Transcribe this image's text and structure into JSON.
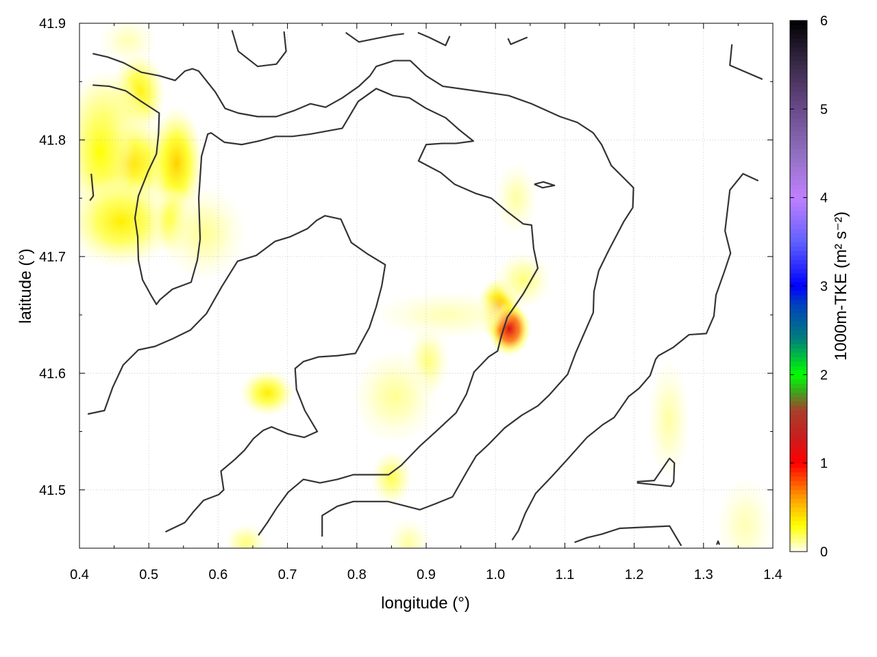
{
  "chart_data": {
    "type": "heatmap",
    "xlabel": "longitude (°)",
    "ylabel": "latitude (°)",
    "colorbar_label": "1000m-TKE (m² s⁻²)",
    "xlim": [
      0.4,
      1.4
    ],
    "ylim": [
      41.45,
      41.9
    ],
    "xticks": [
      "0.4",
      "0.5",
      "0.6",
      "0.7",
      "0.8",
      "0.9",
      "1.0",
      "1.1",
      "1.2",
      "1.3",
      "1.4"
    ],
    "yticks": [
      "41.5",
      "41.6",
      "41.7",
      "41.8",
      "41.9"
    ],
    "grid": true,
    "colorbar": {
      "range": [
        0,
        6
      ],
      "ticks": [
        "0",
        "1",
        "2",
        "3",
        "4",
        "5",
        "6"
      ],
      "stops": [
        [
          0,
          "#fffff4"
        ],
        [
          0.3,
          "#ffff00"
        ],
        [
          0.6,
          "#ffa000"
        ],
        [
          1.0,
          "#ff0000"
        ],
        [
          1.3,
          "#c81e1e"
        ],
        [
          1.6,
          "#a8402a"
        ],
        [
          1.8,
          "#40a020"
        ],
        [
          2.0,
          "#00ff00"
        ],
        [
          2.4,
          "#00807a"
        ],
        [
          2.8,
          "#0040c0"
        ],
        [
          3.0,
          "#0000ff"
        ],
        [
          3.5,
          "#6060ff"
        ],
        [
          4.0,
          "#c080ff"
        ],
        [
          4.5,
          "#9070c0"
        ],
        [
          5.0,
          "#6a4a8a"
        ],
        [
          5.5,
          "#3a2a4a"
        ],
        [
          6.0,
          "#000000"
        ]
      ]
    },
    "tke_field": [
      {
        "lon": 0.485,
        "lat": 41.84,
        "value": 0.35,
        "spread": [
          0.02,
          0.018
        ]
      },
      {
        "lon": 0.44,
        "lat": 41.82,
        "value": 0.2,
        "spread": [
          0.03,
          0.02
        ]
      },
      {
        "lon": 0.47,
        "lat": 41.78,
        "value": 0.4,
        "spread": [
          0.04,
          0.02
        ]
      },
      {
        "lon": 0.43,
        "lat": 41.79,
        "value": 0.3,
        "spread": [
          0.025,
          0.03
        ]
      },
      {
        "lon": 0.54,
        "lat": 41.78,
        "value": 0.45,
        "spread": [
          0.02,
          0.025
        ]
      },
      {
        "lon": 0.46,
        "lat": 41.73,
        "value": 0.35,
        "spread": [
          0.04,
          0.02
        ]
      },
      {
        "lon": 0.535,
        "lat": 41.73,
        "value": 0.3,
        "spread": [
          0.015,
          0.015
        ]
      },
      {
        "lon": 0.58,
        "lat": 41.72,
        "value": 0.12,
        "spread": [
          0.03,
          0.02
        ]
      },
      {
        "lon": 0.47,
        "lat": 41.885,
        "value": 0.08,
        "spread": [
          0.02,
          0.01
        ]
      },
      {
        "lon": 1.005,
        "lat": 41.655,
        "value": 0.6,
        "spread": [
          0.016,
          0.014
        ]
      },
      {
        "lon": 1.02,
        "lat": 41.638,
        "value": 1.2,
        "spread": [
          0.016,
          0.012
        ]
      },
      {
        "lon": 0.671,
        "lat": 41.583,
        "value": 0.35,
        "spread": [
          0.02,
          0.01
        ]
      },
      {
        "lon": 0.903,
        "lat": 41.61,
        "value": 0.15,
        "spread": [
          0.015,
          0.015
        ]
      },
      {
        "lon": 0.855,
        "lat": 41.58,
        "value": 0.12,
        "spread": [
          0.03,
          0.02
        ]
      },
      {
        "lon": 0.85,
        "lat": 41.51,
        "value": 0.2,
        "spread": [
          0.015,
          0.012
        ]
      },
      {
        "lon": 0.93,
        "lat": 41.65,
        "value": 0.08,
        "spread": [
          0.05,
          0.01
        ]
      },
      {
        "lon": 1.04,
        "lat": 41.68,
        "value": 0.15,
        "spread": [
          0.02,
          0.012
        ]
      },
      {
        "lon": 1.03,
        "lat": 41.75,
        "value": 0.1,
        "spread": [
          0.015,
          0.015
        ]
      },
      {
        "lon": 1.25,
        "lat": 41.56,
        "value": 0.1,
        "spread": [
          0.015,
          0.025
        ]
      },
      {
        "lon": 0.64,
        "lat": 41.455,
        "value": 0.15,
        "spread": [
          0.015,
          0.008
        ]
      },
      {
        "lon": 0.875,
        "lat": 41.455,
        "value": 0.1,
        "spread": [
          0.015,
          0.01
        ]
      },
      {
        "lon": 1.36,
        "lat": 41.47,
        "value": 0.08,
        "spread": [
          0.02,
          0.02
        ]
      }
    ],
    "contours": [
      [
        [
          0.419,
          41.874
        ],
        [
          0.441,
          41.871
        ],
        [
          0.464,
          41.866
        ],
        [
          0.489,
          41.858
        ],
        [
          0.515,
          41.855
        ],
        [
          0.538,
          41.851
        ],
        [
          0.552,
          41.859
        ],
        [
          0.563,
          41.861
        ],
        [
          0.572,
          41.859
        ],
        [
          0.596,
          41.841
        ],
        [
          0.61,
          41.827
        ],
        [
          0.629,
          41.823
        ],
        [
          0.657,
          41.82
        ],
        [
          0.684,
          41.82
        ],
        [
          0.709,
          41.825
        ],
        [
          0.733,
          41.831
        ],
        [
          0.755,
          41.828
        ],
        [
          0.779,
          41.836
        ],
        [
          0.803,
          41.846
        ],
        [
          0.819,
          41.855
        ],
        [
          0.828,
          41.863
        ],
        [
          0.854,
          41.868
        ],
        [
          0.877,
          41.868
        ],
        [
          0.9,
          41.855
        ],
        [
          0.924,
          41.846
        ],
        [
          0.972,
          41.842
        ],
        [
          1.019,
          41.838
        ],
        [
          1.052,
          41.831
        ],
        [
          1.093,
          41.82
        ],
        [
          1.118,
          41.815
        ],
        [
          1.141,
          41.806
        ],
        [
          1.153,
          41.796
        ],
        [
          1.167,
          41.778
        ],
        [
          1.189,
          41.765
        ],
        [
          1.199,
          41.759
        ],
        [
          1.198,
          41.742
        ],
        [
          1.185,
          41.73
        ],
        [
          1.163,
          41.705
        ],
        [
          1.149,
          41.688
        ],
        [
          1.142,
          41.67
        ],
        [
          1.141,
          41.652
        ],
        [
          1.116,
          41.618
        ],
        [
          1.104,
          41.599
        ],
        [
          1.077,
          41.581
        ],
        [
          1.061,
          41.572
        ],
        [
          1.038,
          41.564
        ],
        [
          1.013,
          41.553
        ],
        [
          0.99,
          41.539
        ],
        [
          0.972,
          41.529
        ],
        [
          0.959,
          41.516
        ],
        [
          0.938,
          41.494
        ],
        [
          0.913,
          41.488
        ],
        [
          0.891,
          41.483
        ],
        [
          0.845,
          41.49
        ],
        [
          0.795,
          41.49
        ],
        [
          0.772,
          41.486
        ],
        [
          0.75,
          41.478
        ],
        [
          0.75,
          41.46
        ]
      ],
      [
        [
          0.419,
          41.847
        ],
        [
          0.443,
          41.846
        ],
        [
          0.467,
          41.842
        ],
        [
          0.489,
          41.833
        ],
        [
          0.515,
          41.823
        ],
        [
          0.514,
          41.805
        ],
        [
          0.511,
          41.788
        ],
        [
          0.499,
          41.773
        ],
        [
          0.485,
          41.752
        ],
        [
          0.48,
          41.733
        ],
        [
          0.484,
          41.717
        ],
        [
          0.485,
          41.697
        ],
        [
          0.491,
          41.68
        ],
        [
          0.503,
          41.667
        ],
        [
          0.511,
          41.659
        ],
        [
          0.516,
          41.663
        ],
        [
          0.534,
          41.672
        ],
        [
          0.561,
          41.678
        ],
        [
          0.57,
          41.697
        ],
        [
          0.574,
          41.715
        ],
        [
          0.572,
          41.75
        ],
        [
          0.576,
          41.786
        ],
        [
          0.585,
          41.805
        ],
        [
          0.59,
          41.806
        ],
        [
          0.609,
          41.798
        ],
        [
          0.634,
          41.796
        ],
        [
          0.658,
          41.799
        ],
        [
          0.683,
          41.803
        ],
        [
          0.707,
          41.803
        ],
        [
          0.733,
          41.805
        ],
        [
          0.779,
          41.81
        ],
        [
          0.802,
          41.833
        ],
        [
          0.828,
          41.844
        ],
        [
          0.852,
          41.838
        ],
        [
          0.876,
          41.836
        ],
        [
          0.9,
          41.827
        ],
        [
          0.928,
          41.819
        ],
        [
          0.947,
          41.809
        ],
        [
          0.968,
          41.799
        ],
        [
          0.943,
          41.797
        ],
        [
          0.923,
          41.797
        ],
        [
          0.9,
          41.796
        ],
        [
          0.889,
          41.782
        ],
        [
          0.921,
          41.772
        ],
        [
          0.941,
          41.762
        ],
        [
          0.972,
          41.754
        ],
        [
          0.994,
          41.75
        ],
        [
          1.018,
          41.738
        ],
        [
          1.04,
          41.728
        ],
        [
          1.052,
          41.727
        ],
        [
          1.055,
          41.707
        ],
        [
          1.061,
          41.69
        ],
        [
          1.04,
          41.668
        ],
        [
          1.017,
          41.648
        ],
        [
          1.008,
          41.631
        ],
        [
          1.003,
          41.619
        ],
        [
          0.99,
          41.614
        ],
        [
          0.969,
          41.601
        ],
        [
          0.958,
          41.582
        ],
        [
          0.943,
          41.566
        ],
        [
          0.914,
          41.55
        ],
        [
          0.89,
          41.537
        ],
        [
          0.864,
          41.521
        ],
        [
          0.846,
          41.513
        ],
        [
          0.795,
          41.513
        ],
        [
          0.772,
          41.509
        ],
        [
          0.747,
          41.506
        ],
        [
          0.723,
          41.509
        ],
        [
          0.701,
          41.498
        ],
        [
          0.685,
          41.485
        ],
        [
          0.671,
          41.472
        ],
        [
          0.658,
          41.461
        ]
      ],
      [
        [
          0.412,
          41.565
        ],
        [
          0.436,
          41.568
        ],
        [
          0.448,
          41.588
        ],
        [
          0.463,
          41.607
        ],
        [
          0.485,
          41.62
        ],
        [
          0.509,
          41.623
        ],
        [
          0.536,
          41.63
        ],
        [
          0.56,
          41.637
        ],
        [
          0.583,
          41.651
        ],
        [
          0.605,
          41.674
        ],
        [
          0.628,
          41.696
        ],
        [
          0.655,
          41.701
        ],
        [
          0.682,
          41.713
        ],
        [
          0.704,
          41.717
        ],
        [
          0.729,
          41.724
        ],
        [
          0.742,
          41.731
        ],
        [
          0.754,
          41.735
        ],
        [
          0.777,
          41.732
        ],
        [
          0.792,
          41.712
        ],
        [
          0.816,
          41.702
        ],
        [
          0.841,
          41.693
        ],
        [
          0.836,
          41.675
        ],
        [
          0.828,
          41.657
        ],
        [
          0.818,
          41.639
        ],
        [
          0.798,
          41.617
        ],
        [
          0.772,
          41.615
        ],
        [
          0.745,
          41.614
        ],
        [
          0.723,
          41.61
        ],
        [
          0.711,
          41.604
        ],
        [
          0.713,
          41.586
        ],
        [
          0.725,
          41.568
        ],
        [
          0.743,
          41.55
        ],
        [
          0.724,
          41.545
        ],
        [
          0.701,
          41.548
        ],
        [
          0.677,
          41.554
        ],
        [
          0.665,
          41.551
        ],
        [
          0.651,
          41.544
        ],
        [
          0.638,
          41.534
        ],
        [
          0.624,
          41.526
        ],
        [
          0.604,
          41.516
        ],
        [
          0.608,
          41.5
        ],
        [
          0.601,
          41.496
        ],
        [
          0.579,
          41.491
        ],
        [
          0.564,
          41.481
        ],
        [
          0.552,
          41.472
        ],
        [
          0.524,
          41.464
        ]
      ],
      [
        [
          1.379,
          41.765
        ],
        [
          1.357,
          41.771
        ],
        [
          1.338,
          41.757
        ],
        [
          1.331,
          41.722
        ],
        [
          1.339,
          41.703
        ],
        [
          1.33,
          41.687
        ],
        [
          1.318,
          41.667
        ],
        [
          1.315,
          41.649
        ],
        [
          1.304,
          41.634
        ],
        [
          1.279,
          41.633
        ],
        [
          1.256,
          41.622
        ],
        [
          1.235,
          41.615
        ],
        [
          1.231,
          41.612
        ],
        [
          1.223,
          41.598
        ],
        [
          1.207,
          41.587
        ],
        [
          1.192,
          41.58
        ],
        [
          1.171,
          41.562
        ],
        [
          1.155,
          41.556
        ],
        [
          1.132,
          41.545
        ],
        [
          1.105,
          41.527
        ],
        [
          1.082,
          41.512
        ],
        [
          1.058,
          41.497
        ],
        [
          1.043,
          41.48
        ],
        [
          1.033,
          41.465
        ],
        [
          1.024,
          41.457
        ]
      ],
      [
        [
          0.62,
          41.894
        ],
        [
          0.629,
          41.876
        ],
        [
          0.657,
          41.863
        ],
        [
          0.684,
          41.865
        ],
        [
          0.698,
          41.876
        ],
        [
          0.695,
          41.893
        ]
      ],
      [
        [
          0.784,
          41.892
        ],
        [
          0.803,
          41.884
        ],
        [
          0.828,
          41.887
        ],
        [
          0.854,
          41.89
        ],
        [
          0.868,
          41.891
        ]
      ],
      [
        [
          0.888,
          41.892
        ],
        [
          0.904,
          41.888
        ],
        [
          0.928,
          41.881
        ],
        [
          0.934,
          41.889
        ]
      ],
      [
        [
          1.046,
          41.888
        ],
        [
          1.022,
          41.882
        ],
        [
          1.018,
          41.887
        ]
      ],
      [
        [
          1.341,
          41.882
        ],
        [
          1.338,
          41.864
        ],
        [
          1.385,
          41.852
        ]
      ],
      [
        [
          0.417,
          41.771
        ],
        [
          0.42,
          41.752
        ],
        [
          0.415,
          41.748
        ]
      ],
      [
        [
          1.056,
          41.762
        ],
        [
          1.069,
          41.764
        ],
        [
          1.085,
          41.761
        ],
        [
          1.068,
          41.759
        ],
        [
          1.056,
          41.762
        ]
      ],
      [
        [
          1.204,
          41.507
        ],
        [
          1.229,
          41.508
        ],
        [
          1.251,
          41.527
        ],
        [
          1.258,
          41.523
        ],
        [
          1.257,
          41.507
        ],
        [
          1.253,
          41.503
        ],
        [
          1.204,
          41.506
        ]
      ],
      [
        [
          1.114,
          41.455
        ],
        [
          1.132,
          41.459
        ],
        [
          1.153,
          41.462
        ],
        [
          1.179,
          41.467
        ],
        [
          1.251,
          41.469
        ],
        [
          1.268,
          41.452
        ]
      ],
      [
        [
          1.319,
          41.453
        ],
        [
          1.321,
          41.456
        ],
        [
          1.323,
          41.453
        ]
      ]
    ]
  }
}
